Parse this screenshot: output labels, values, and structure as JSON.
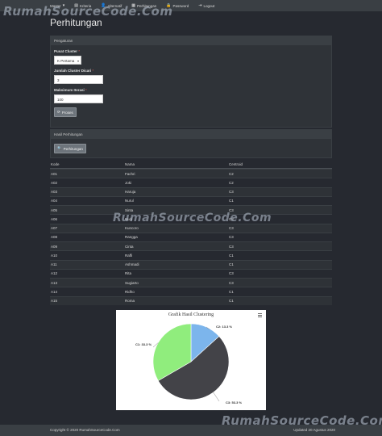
{
  "nav": {
    "items": [
      {
        "label": "Master",
        "icon": "chevron-down-icon"
      },
      {
        "label": "Kriteria",
        "icon": "list-icon"
      },
      {
        "label": "Alternatif",
        "icon": "user-icon"
      },
      {
        "label": "Perhitungan",
        "icon": "table-icon"
      },
      {
        "label": "Password",
        "icon": "lock-icon"
      },
      {
        "label": "Logout",
        "icon": "logout-icon"
      }
    ]
  },
  "watermark": "RumahSourceCode.Com",
  "page_title": "Perhitungan",
  "settings": {
    "title": "Pengaturan",
    "pusat_label": "Pusat Cluster",
    "pusat_value": "K Pertama",
    "jumlah_label": "Jumlah Cluster Dicari",
    "jumlah_value": "3",
    "iterasi_label": "Maksimum Iterasi",
    "iterasi_value": "100",
    "required_mark": "*",
    "process_label": "Proses"
  },
  "results": {
    "title": "Hasil Perhitungan",
    "button_label": "Perhitungan",
    "columns": [
      "Kode",
      "Nama",
      "Centroid"
    ],
    "rows": [
      [
        "A01",
        "Fachri",
        "C2"
      ],
      [
        "A02",
        "Joki",
        "C2"
      ],
      [
        "A03",
        "Haruja",
        "C3"
      ],
      [
        "A04",
        "Nurul",
        "C1"
      ],
      [
        "A05",
        "Sinta",
        "C3"
      ],
      [
        "A06",
        "Budi",
        "C3"
      ],
      [
        "A07",
        "Kuncoro",
        "C3"
      ],
      [
        "A08",
        "Rangga",
        "C3"
      ],
      [
        "A09",
        "Cinta",
        "C3"
      ],
      [
        "A10",
        "Raffi",
        "C1"
      ],
      [
        "A11",
        "Ashmadi",
        "C1"
      ],
      [
        "A12",
        "Rita",
        "C3"
      ],
      [
        "A13",
        "Sugiarto",
        "C3"
      ],
      [
        "A14",
        "Ridho",
        "C1"
      ],
      [
        "A15",
        "Roma",
        "C1"
      ]
    ]
  },
  "chart_data": {
    "type": "pie",
    "title": "Grafik Hasil Clustering",
    "series": [
      {
        "name": "C2",
        "value": 13.3,
        "label": "C2: 13.3 %",
        "color": "#7cb5ec"
      },
      {
        "name": "C3",
        "value": 53.3,
        "label": "C3: 53.3 %",
        "color": "#434348"
      },
      {
        "name": "C1",
        "value": 33.3,
        "label": "C1: 33.3 %",
        "color": "#90ed7d"
      }
    ]
  },
  "footer": {
    "copyright": "Copyright © 2020 RumahSourceCode.Com",
    "updated": "Updated 20 Agustus 2020"
  }
}
